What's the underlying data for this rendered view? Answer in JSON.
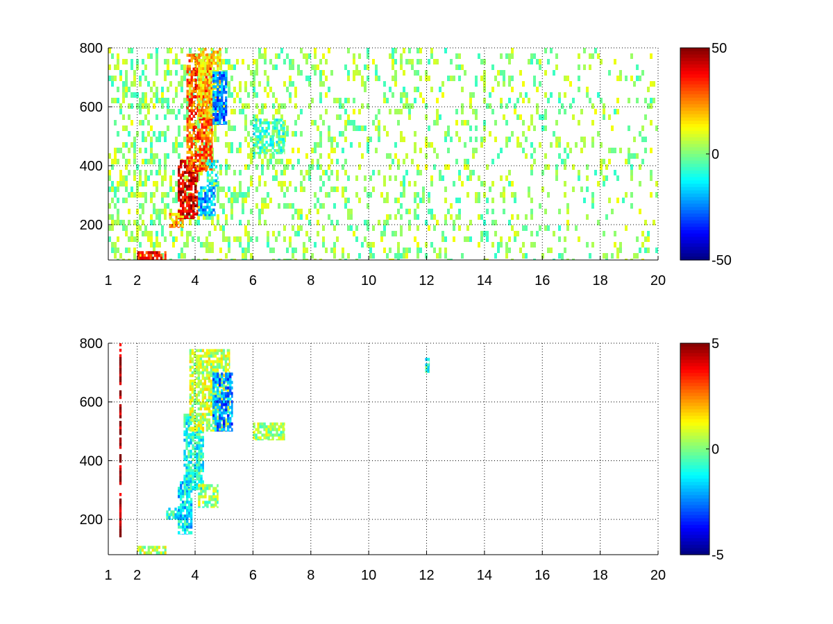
{
  "chart_data": [
    {
      "type": "heatmap",
      "title": "",
      "xlabel": "",
      "ylabel": "",
      "xlim": [
        1,
        20
      ],
      "ylim": [
        80,
        800
      ],
      "grid": true,
      "grid_style": "dotted",
      "x_ticks": [
        1,
        2,
        4,
        6,
        8,
        10,
        12,
        14,
        16,
        18,
        20
      ],
      "x_tick_labels": [
        "1",
        "2",
        "4",
        "6",
        "8",
        "10",
        "12",
        "14",
        "16",
        "18",
        "20"
      ],
      "y_ticks": [
        200,
        400,
        600,
        800
      ],
      "y_tick_labels": [
        "200",
        "400",
        "600",
        "800"
      ],
      "colormap": "jet",
      "clim": [
        -50,
        50
      ],
      "colorbar_ticks": [
        50,
        0,
        -50
      ],
      "colorbar_tick_labels": [
        "50",
        "0",
        "-50"
      ],
      "blobs": [
        {
          "x": [
            2.0,
            3.0
          ],
          "y": [
            80,
            110
          ],
          "value": 35
        },
        {
          "x": [
            3.1,
            3.6
          ],
          "y": [
            190,
            240
          ],
          "value": 20
        },
        {
          "x": [
            3.4,
            4.1
          ],
          "y": [
            220,
            420
          ],
          "value": 40
        },
        {
          "x": [
            3.7,
            4.6
          ],
          "y": [
            380,
            780
          ],
          "value": 28
        },
        {
          "x": [
            4.1,
            4.9
          ],
          "y": [
            560,
            800
          ],
          "value": 15
        },
        {
          "x": [
            4.6,
            5.1
          ],
          "y": [
            540,
            720
          ],
          "value": -25
        },
        {
          "x": [
            4.1,
            4.7
          ],
          "y": [
            230,
            330
          ],
          "value": -20
        },
        {
          "x": [
            4.4,
            4.8
          ],
          "y": [
            330,
            420
          ],
          "value": -10
        },
        {
          "x": [
            6.0,
            7.1
          ],
          "y": [
            440,
            560
          ],
          "value": -5
        }
      ],
      "noise": {
        "x": [
          1,
          20
        ],
        "density_start": 0.35,
        "density_end": 0.12,
        "value_range": [
          -8,
          12
        ]
      }
    },
    {
      "type": "heatmap",
      "title": "",
      "xlabel": "",
      "ylabel": "",
      "xlim": [
        1,
        20
      ],
      "ylim": [
        80,
        800
      ],
      "grid": true,
      "grid_style": "dotted",
      "x_ticks": [
        1,
        2,
        4,
        6,
        8,
        10,
        12,
        14,
        16,
        18,
        20
      ],
      "x_tick_labels": [
        "1",
        "2",
        "4",
        "6",
        "8",
        "10",
        "12",
        "14",
        "16",
        "18",
        "20"
      ],
      "y_ticks": [
        200,
        400,
        600,
        800
      ],
      "y_tick_labels": [
        "200",
        "400",
        "600",
        "800"
      ],
      "colormap": "jet",
      "clim": [
        -5,
        5
      ],
      "colorbar_ticks": [
        5,
        0,
        -5
      ],
      "colorbar_tick_labels": [
        "5",
        "0",
        "-5"
      ],
      "blobs": [
        {
          "x": [
            1.38,
            1.45
          ],
          "y": [
            140,
            800
          ],
          "value": 4.8
        },
        {
          "x": [
            2.0,
            3.0
          ],
          "y": [
            80,
            110
          ],
          "value": 0.5
        },
        {
          "x": [
            3.0,
            3.4
          ],
          "y": [
            200,
            240
          ],
          "value": -1.0
        },
        {
          "x": [
            3.4,
            3.9
          ],
          "y": [
            150,
            330
          ],
          "value": -1.5
        },
        {
          "x": [
            3.6,
            4.3
          ],
          "y": [
            300,
            560
          ],
          "value": -1.0
        },
        {
          "x": [
            3.8,
            5.2
          ],
          "y": [
            500,
            780
          ],
          "value": 0.6
        },
        {
          "x": [
            4.6,
            5.3
          ],
          "y": [
            500,
            700
          ],
          "value": -2.5
        },
        {
          "x": [
            4.1,
            4.8
          ],
          "y": [
            240,
            320
          ],
          "value": 0.3
        },
        {
          "x": [
            6.0,
            7.1
          ],
          "y": [
            470,
            530
          ],
          "value": 0.3
        },
        {
          "x": [
            11.95,
            12.1
          ],
          "y": [
            700,
            750
          ],
          "value": -1.0
        }
      ],
      "noise": {
        "x": [
          1,
          1
        ],
        "density_start": 0,
        "density_end": 0,
        "value_range": [
          0,
          0
        ]
      }
    }
  ]
}
